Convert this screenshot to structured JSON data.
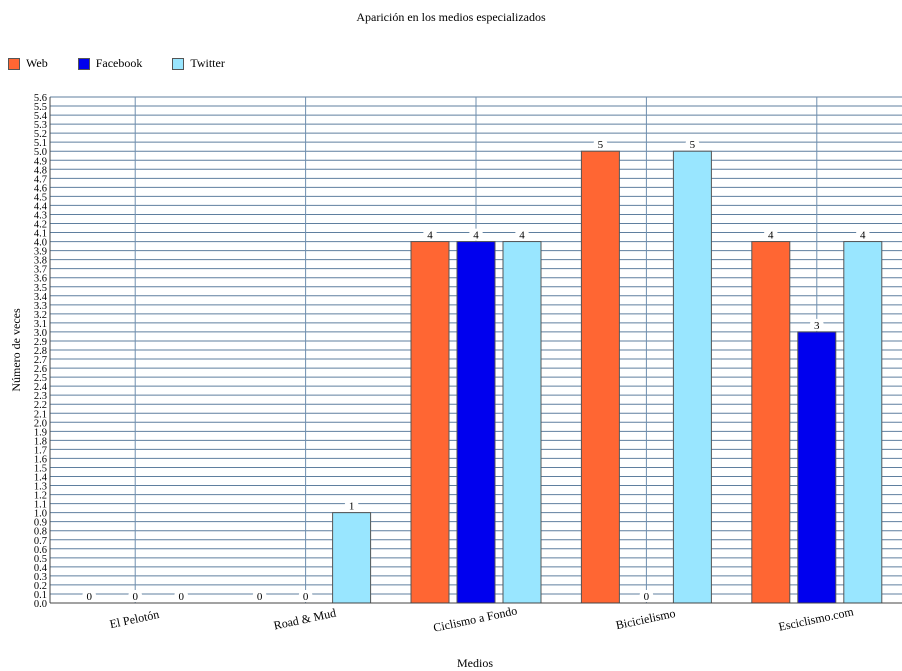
{
  "chart_data": {
    "type": "bar",
    "title": "Aparición en los medios especializados",
    "xlabel": "Medios",
    "ylabel": "Número de veces",
    "categories": [
      "El Pelotón",
      "Road & Mud",
      "Ciclismo a Fondo",
      "Bicicielismo",
      "Esciclismo.com"
    ],
    "series": [
      {
        "name": "Web",
        "color": "#ff6633",
        "values": [
          0,
          0,
          4,
          5,
          4
        ]
      },
      {
        "name": "Facebook",
        "color": "#0000ee",
        "values": [
          0,
          0,
          4,
          0,
          3
        ]
      },
      {
        "name": "Twitter",
        "color": "#99e6ff",
        "values": [
          0,
          1,
          4,
          5,
          4
        ]
      }
    ],
    "ylim": [
      0,
      5.6
    ],
    "ytick_step": 0.1,
    "grid": true,
    "legend_position": "top-left"
  }
}
